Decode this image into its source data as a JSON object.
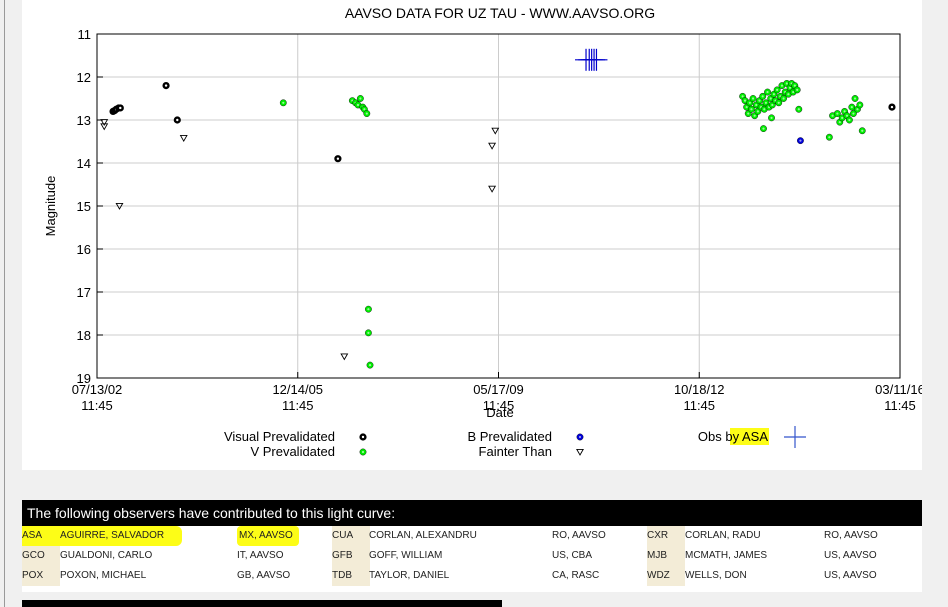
{
  "chart_data": {
    "type": "scatter",
    "title": "AAVSO DATA FOR UZ TAU - WWW.AAVSO.ORG",
    "xlabel": "Date",
    "ylabel": "Magnitude",
    "y_inverted": true,
    "ylim": [
      11,
      19
    ],
    "yticks": [
      "11",
      "12",
      "13",
      "14",
      "15",
      "16",
      "17",
      "18",
      "19"
    ],
    "xticks": [
      {
        "date": "07/13/02",
        "time": "11:45",
        "jd": 0
      },
      {
        "date": "12/14/05",
        "time": "11:45",
        "jd": 1250
      },
      {
        "date": "05/17/09",
        "time": "11:45",
        "jd": 2500
      },
      {
        "date": "10/18/12",
        "time": "11:45",
        "jd": 3750
      },
      {
        "date": "03/11/16",
        "time": "11:45",
        "jd": 5000
      }
    ],
    "xlim": [
      0,
      5000
    ],
    "x_units": "days from 07/13/02 11:45",
    "grid": true,
    "series": [
      {
        "name": "Visual Prevalidated",
        "color": "#000000",
        "marker": "circle",
        "points": [
          [
            100,
            12.8
          ],
          [
            110,
            12.78
          ],
          [
            120,
            12.75
          ],
          [
            135,
            12.72
          ],
          [
            145,
            12.72
          ],
          [
            430,
            12.2
          ],
          [
            500,
            13.0
          ],
          [
            1500,
            13.9
          ],
          [
            4950,
            12.7
          ]
        ]
      },
      {
        "name": "V Prevalidated",
        "color": "#00ee00",
        "marker": "circle",
        "points": [
          [
            1160,
            12.6
          ],
          [
            1590,
            12.55
          ],
          [
            1610,
            12.6
          ],
          [
            1625,
            12.65
          ],
          [
            1640,
            12.5
          ],
          [
            1655,
            12.7
          ],
          [
            1665,
            12.75
          ],
          [
            1680,
            12.85
          ],
          [
            1690,
            17.4
          ],
          [
            1690,
            17.95
          ],
          [
            1700,
            18.7
          ],
          [
            4020,
            12.45
          ],
          [
            4035,
            12.55
          ],
          [
            4045,
            12.7
          ],
          [
            4055,
            12.85
          ],
          [
            4065,
            12.6
          ],
          [
            4075,
            12.75
          ],
          [
            4085,
            12.5
          ],
          [
            4095,
            12.9
          ],
          [
            4105,
            12.65
          ],
          [
            4115,
            12.8
          ],
          [
            4125,
            12.55
          ],
          [
            4135,
            12.7
          ],
          [
            4145,
            12.45
          ],
          [
            4155,
            12.75
          ],
          [
            4165,
            12.6
          ],
          [
            4175,
            12.35
          ],
          [
            4185,
            12.7
          ],
          [
            4195,
            12.5
          ],
          [
            4205,
            12.65
          ],
          [
            4215,
            12.4
          ],
          [
            4225,
            12.55
          ],
          [
            4235,
            12.3
          ],
          [
            4245,
            12.6
          ],
          [
            4255,
            12.45
          ],
          [
            4265,
            12.2
          ],
          [
            4275,
            12.5
          ],
          [
            4285,
            12.35
          ],
          [
            4295,
            12.15
          ],
          [
            4305,
            12.4
          ],
          [
            4315,
            12.25
          ],
          [
            4325,
            12.15
          ],
          [
            4335,
            12.35
          ],
          [
            4345,
            12.2
          ],
          [
            4360,
            12.3
          ],
          [
            4370,
            12.75
          ],
          [
            4150,
            13.2
          ],
          [
            4200,
            12.95
          ],
          [
            4560,
            13.4
          ],
          [
            4580,
            12.9
          ],
          [
            4610,
            12.85
          ],
          [
            4625,
            13.05
          ],
          [
            4640,
            12.95
          ],
          [
            4655,
            12.8
          ],
          [
            4670,
            12.9
          ],
          [
            4685,
            13.0
          ],
          [
            4700,
            12.7
          ],
          [
            4710,
            12.85
          ],
          [
            4720,
            12.5
          ],
          [
            4735,
            12.75
          ],
          [
            4750,
            12.65
          ],
          [
            4765,
            13.25
          ]
        ]
      },
      {
        "name": "B Prevalidated",
        "color": "#0000dd",
        "marker": "circle",
        "points": [
          [
            4380,
            13.48
          ]
        ]
      },
      {
        "name": "Fainter Than",
        "color": "#000000",
        "marker": "triangle-down",
        "points": [
          [
            45,
            13.05
          ],
          [
            45,
            13.15
          ],
          [
            140,
            15.0
          ],
          [
            540,
            13.42
          ],
          [
            1540,
            18.5
          ],
          [
            2460,
            13.6
          ],
          [
            2480,
            13.25
          ],
          [
            2460,
            14.6
          ]
        ]
      },
      {
        "name": "Obs by ASA",
        "color": "#0000cc",
        "marker": "cross",
        "points": [
          [
            3045,
            11.6
          ],
          [
            3065,
            11.6
          ],
          [
            3080,
            11.6
          ],
          [
            3095,
            11.6
          ],
          [
            3110,
            11.6
          ]
        ]
      }
    ],
    "legend": [
      {
        "label": "Visual Prevalidated",
        "color": "#000000",
        "marker": "circle"
      },
      {
        "label": "V Prevalidated",
        "color": "#00ee00",
        "marker": "circle"
      },
      {
        "label": "B Prevalidated",
        "color": "#0000dd",
        "marker": "circle"
      },
      {
        "label": "Fainter Than",
        "color": "#000000",
        "marker": "triangle-down"
      },
      {
        "label_prefix": "Obs by ",
        "label_highlight": "ASA",
        "color": "#3355cc",
        "marker": "cross"
      }
    ]
  },
  "observers": {
    "header": "The following observers have contributed to this light curve:",
    "rows": [
      [
        {
          "code": "ASA",
          "name": "AGUIRRE, SALVADOR",
          "loc": "MX, AAVSO",
          "highlight": true
        },
        {
          "code": "CUA",
          "name": "CORLAN, ALEXANDRU",
          "loc": "RO, AAVSO"
        },
        {
          "code": "CXR",
          "name": "CORLAN, RADU",
          "loc": "RO, AAVSO"
        }
      ],
      [
        {
          "code": "GCO",
          "name": "GUALDONI, CARLO",
          "loc": "IT, AAVSO"
        },
        {
          "code": "GFB",
          "name": "GOFF, WILLIAM",
          "loc": "US, CBA"
        },
        {
          "code": "MJB",
          "name": "MCMATH, JAMES",
          "loc": "US, AAVSO"
        }
      ],
      [
        {
          "code": "POX",
          "name": "POXON, MICHAEL",
          "loc": "GB, AAVSO"
        },
        {
          "code": "TDB",
          "name": "TAYLOR, DANIEL",
          "loc": "CA, RASC"
        },
        {
          "code": "WDZ",
          "name": "WELLS, DON",
          "loc": "US, AAVSO"
        }
      ]
    ]
  }
}
